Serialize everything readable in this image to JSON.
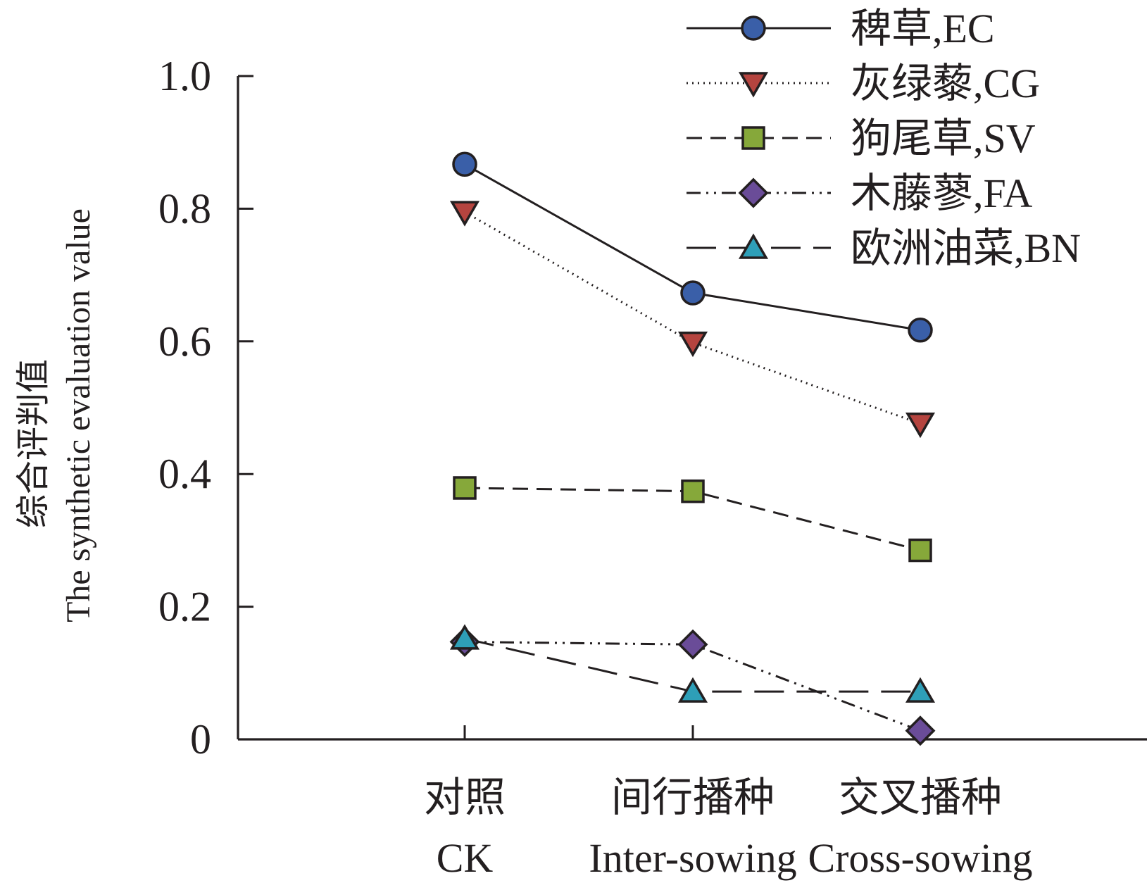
{
  "chart_data": {
    "type": "line",
    "title": "",
    "ylabel": [
      "综合评判值",
      "The synthetic evaluation value"
    ],
    "xlabel": "",
    "ylim": [
      0,
      1.0
    ],
    "yticks": [
      "0",
      "0.2",
      "0.4",
      "0.6",
      "0.8",
      "1.0"
    ],
    "categories": [
      [
        "对照",
        "CK"
      ],
      [
        "间行播种",
        "Inter-sowing"
      ],
      [
        "交叉播种",
        "Cross-sowing"
      ]
    ],
    "legend_position": "top-right",
    "grid": false,
    "series": [
      {
        "name": "稗草,EC",
        "values": [
          0.867,
          0.673,
          0.617
        ],
        "marker": "circle",
        "dash": "solid",
        "color": "#3a5fa8"
      },
      {
        "name": "灰绿藜,CG",
        "values": [
          0.795,
          0.598,
          0.476
        ],
        "marker": "triangle-down",
        "dash": "dotted",
        "color": "#b5443f"
      },
      {
        "name": "狗尾草,SV",
        "values": [
          0.379,
          0.374,
          0.285
        ],
        "marker": "square",
        "dash": "dashed",
        "color": "#86a83a"
      },
      {
        "name": "木藤蓼,FA",
        "values": [
          0.147,
          0.143,
          0.013
        ],
        "marker": "diamond",
        "dash": "dash-dot-dot",
        "color": "#6a4c98"
      },
      {
        "name": "欧洲油菜,BN",
        "values": [
          0.152,
          0.072,
          0.072
        ],
        "marker": "triangle-up",
        "dash": "long-dash",
        "color": "#2e9fb8"
      }
    ]
  }
}
